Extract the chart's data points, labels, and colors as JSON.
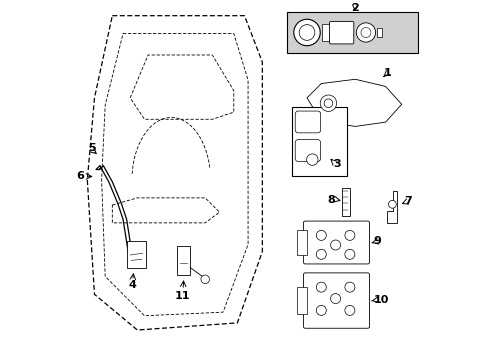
{
  "bg_color": "#ffffff",
  "line_color": "#000000",
  "text_color": "#000000",
  "gray_fill": "#d0d0d0"
}
